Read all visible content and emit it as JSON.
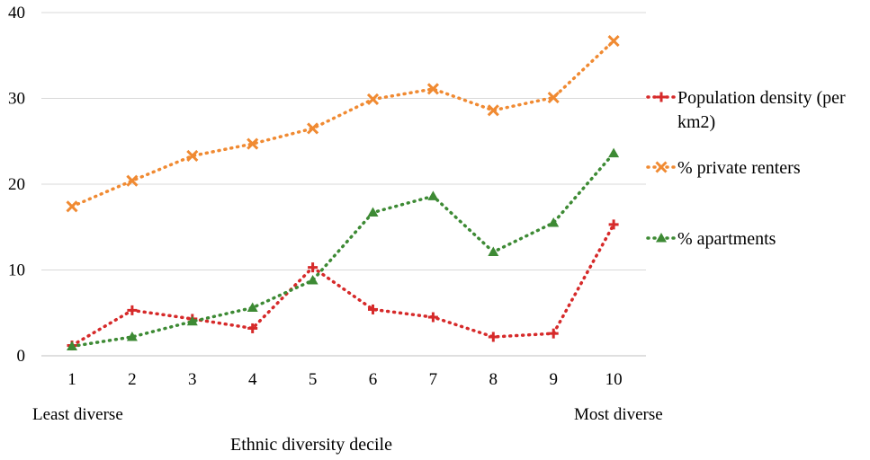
{
  "chart_data": {
    "type": "line",
    "x": [
      1,
      2,
      3,
      4,
      5,
      6,
      7,
      8,
      9,
      10
    ],
    "xlabel": "Ethnic diversity decile",
    "x_annotations": {
      "left": "Least diverse",
      "right": "Most diverse"
    },
    "ylim": [
      0,
      40
    ],
    "y_ticks": [
      0,
      10,
      20,
      30,
      40
    ],
    "grid": "horizontal",
    "legend_position": "right",
    "series": [
      {
        "name": "Population density (per km2)",
        "name_lines": [
          "Population density (per",
          "km2)"
        ],
        "color": "#d62a2a",
        "marker": "plus",
        "values": [
          1.2,
          5.3,
          4.3,
          3.2,
          10.3,
          5.4,
          4.5,
          2.2,
          2.6,
          15.3
        ]
      },
      {
        "name": "% private renters",
        "name_lines": [
          "% private renters"
        ],
        "color": "#f08a32",
        "marker": "x",
        "values": [
          17.4,
          20.4,
          23.3,
          24.7,
          26.5,
          29.9,
          31.1,
          28.6,
          30.1,
          36.7
        ]
      },
      {
        "name": "% apartments",
        "name_lines": [
          "% apartments"
        ],
        "color": "#3d8a34",
        "marker": "triangle",
        "values": [
          1.1,
          2.2,
          4.0,
          5.6,
          8.8,
          16.7,
          18.6,
          12.1,
          15.5,
          23.6
        ]
      }
    ]
  }
}
